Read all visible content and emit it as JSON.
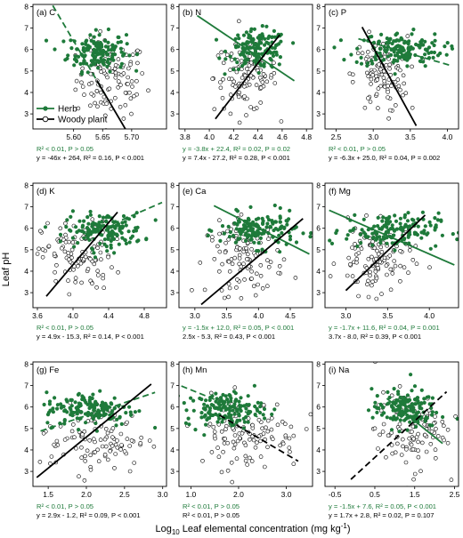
{
  "colors": {
    "herb": "#1e7a3a",
    "woody": "#000000"
  },
  "ylabel": "Leaf pH",
  "xlabel_parts": [
    "Log",
    "10",
    " Leaf elemental concentration (mg kg",
    "-1",
    ")"
  ],
  "legend": {
    "herb": "Herb",
    "woody": "Woody plant"
  },
  "chart_data": [
    {
      "type": "scatter",
      "label": "(a) C",
      "xlim": [
        5.53,
        5.76
      ],
      "ylim": [
        2.3,
        8.1
      ],
      "xticks": [
        5.6,
        5.65,
        5.7
      ],
      "xtick_labels": [
        "5.60",
        "5.65",
        "5.70"
      ],
      "yticks": [
        3,
        4,
        5,
        6,
        7,
        8
      ],
      "herb_center": [
        5.64,
        5.9
      ],
      "herb_spread": [
        0.025,
        0.45
      ],
      "woody_center": [
        5.665,
        4.6
      ],
      "woody_spread": [
        0.03,
        0.9
      ],
      "herb_line": {
        "slope": -46,
        "intercept": 264,
        "x": [
          5.53,
          5.66
        ],
        "dashed": true
      },
      "woody_line": {
        "slope": -46,
        "intercept": 264,
        "x": [
          5.64,
          5.75
        ],
        "dashed": false
      },
      "stat_herb": "R² < 0.01, P > 0.05",
      "stat_woody": "y = -46x + 264, R² = 0.16, P < 0.001"
    },
    {
      "type": "scatter",
      "label": "(b) N",
      "xlim": [
        3.75,
        4.85
      ],
      "ylim": [
        2.3,
        8.1
      ],
      "xticks": [
        3.8,
        4.0,
        4.2,
        4.4,
        4.6,
        4.8
      ],
      "xtick_labels": [
        "3.8",
        "4.0",
        "4.2",
        "4.4",
        "4.6",
        "4.8"
      ],
      "yticks": [
        3,
        4,
        5,
        6,
        7,
        8
      ],
      "herb_center": [
        4.4,
        6.0
      ],
      "herb_spread": [
        0.12,
        0.45
      ],
      "woody_center": [
        4.3,
        4.7
      ],
      "woody_spread": [
        0.13,
        0.8
      ],
      "herb_line": {
        "slope": -3.8,
        "intercept": 22.4,
        "x": [
          3.9,
          4.7
        ],
        "dashed": false
      },
      "woody_line": {
        "slope": 7.4,
        "intercept": -27.2,
        "x": [
          4.05,
          4.58
        ],
        "dashed": false
      },
      "stat_herb": "y = -3.8x + 22.4, R² = 0.02, P = 0.02",
      "stat_woody": "y = 7.4x - 27.2, R² = 0.28, P < 0.001"
    },
    {
      "type": "scatter",
      "label": "(c) P",
      "xlim": [
        2.35,
        4.15
      ],
      "ylim": [
        2.3,
        8.1
      ],
      "xticks": [
        2.5,
        3.0,
        3.5,
        4.0
      ],
      "xtick_labels": [
        "2.5",
        "3.0",
        "3.5",
        "4.0"
      ],
      "yticks": [
        3,
        4,
        5,
        6,
        7,
        8
      ],
      "herb_center": [
        3.35,
        6.0
      ],
      "herb_spread": [
        0.3,
        0.4
      ],
      "woody_center": [
        3.1,
        4.8
      ],
      "woody_spread": [
        0.18,
        0.9
      ],
      "herb_line": {
        "slope": -1.0,
        "intercept": 9.3,
        "x": [
          2.8,
          4.05
        ],
        "dashed": true
      },
      "woody_line": {
        "slope": -6.3,
        "intercept": 25.0,
        "x": [
          2.85,
          3.58
        ],
        "dashed": false
      },
      "stat_herb": "R² < 0.01, P > 0.05",
      "stat_woody": "y = -6.3x + 25.0, R² = 0.04, P = 0.002"
    },
    {
      "type": "scatter",
      "label": "(d) K",
      "xlim": [
        3.55,
        5.05
      ],
      "ylim": [
        2.3,
        8.1
      ],
      "xticks": [
        3.6,
        4.0,
        4.4,
        4.8
      ],
      "xtick_labels": [
        "3.6",
        "4.0",
        "4.4",
        "4.8"
      ],
      "yticks": [
        3,
        4,
        5,
        6,
        7,
        8
      ],
      "herb_center": [
        4.35,
        5.9
      ],
      "herb_spread": [
        0.22,
        0.4
      ],
      "woody_center": [
        4.05,
        4.7
      ],
      "woody_spread": [
        0.2,
        0.8
      ],
      "herb_line": {
        "slope": 1.8,
        "intercept": -1.8,
        "x": [
          4.45,
          5.0
        ],
        "dashed": true
      },
      "woody_line": {
        "slope": 4.9,
        "intercept": -15.3,
        "x": [
          3.7,
          4.5
        ],
        "dashed": false
      },
      "stat_herb": "R² < 0.01, P > 0.05",
      "stat_woody": "y = 4.9x - 15.3, R² = 0.14, P < 0.001"
    },
    {
      "type": "scatter",
      "label": "(e) Ca",
      "xlim": [
        2.75,
        4.85
      ],
      "ylim": [
        2.3,
        8.1
      ],
      "xticks": [
        3.0,
        3.5,
        4.0,
        4.5
      ],
      "xtick_labels": [
        "3.0",
        "3.5",
        "4.0",
        "4.5"
      ],
      "yticks": [
        3,
        4,
        5,
        6,
        7,
        8
      ],
      "herb_center": [
        4.0,
        5.9
      ],
      "herb_spread": [
        0.3,
        0.4
      ],
      "woody_center": [
        3.8,
        4.6
      ],
      "woody_spread": [
        0.3,
        0.85
      ],
      "herb_line": {
        "slope": -1.5,
        "intercept": 12.0,
        "x": [
          3.3,
          4.8
        ],
        "dashed": false
      },
      "woody_line": {
        "slope": 2.5,
        "intercept": -5.3,
        "x": [
          3.1,
          4.7
        ],
        "dashed": false
      },
      "stat_herb": "y = -1.5x + 12.0, R² = 0.05, P < 0.001",
      "stat_woody": "2.5x - 5.3, R² = 0.43, P < 0.001"
    },
    {
      "type": "scatter",
      "label": "(f) Mg",
      "xlim": [
        2.75,
        4.35
      ],
      "ylim": [
        2.3,
        8.1
      ],
      "xticks": [
        3.0,
        3.5,
        4.0
      ],
      "xtick_labels": [
        "3.0",
        "3.5",
        "4.0"
      ],
      "yticks": [
        3,
        4,
        5,
        6,
        7,
        8
      ],
      "herb_center": [
        3.55,
        5.9
      ],
      "herb_spread": [
        0.28,
        0.4
      ],
      "woody_center": [
        3.35,
        4.5
      ],
      "woody_spread": [
        0.22,
        0.8
      ],
      "herb_line": {
        "slope": -1.7,
        "intercept": 11.6,
        "x": [
          2.8,
          4.3
        ],
        "dashed": false
      },
      "woody_line": {
        "slope": 3.7,
        "intercept": -8.0,
        "x": [
          3.0,
          3.95
        ],
        "dashed": false
      },
      "stat_herb": "y = -1.7x + 11.6, R² = 0.04, P = 0.001",
      "stat_woody": "3.7x - 8.0, R² = 0.39, P < 0.001"
    },
    {
      "type": "scatter",
      "label": "(g) Fe",
      "xlim": [
        1.3,
        3.05
      ],
      "ylim": [
        2.3,
        8.1
      ],
      "xticks": [
        1.5,
        2.0,
        2.5,
        3.0
      ],
      "xtick_labels": [
        "1.5",
        "2.0",
        "2.5",
        "3.0"
      ],
      "yticks": [
        3,
        4,
        5,
        6,
        7,
        8
      ],
      "herb_center": [
        2.05,
        5.9
      ],
      "herb_spread": [
        0.3,
        0.4
      ],
      "woody_center": [
        2.1,
        4.5
      ],
      "woody_spread": [
        0.35,
        0.8
      ],
      "herb_line": {
        "slope": 1.2,
        "intercept": 3.2,
        "x": [
          1.4,
          2.9
        ],
        "dashed": true
      },
      "woody_line": {
        "slope": 2.9,
        "intercept": -1.2,
        "x": [
          1.35,
          2.85
        ],
        "dashed": false
      },
      "stat_herb": "R² < 0.01, P > 0.05",
      "stat_woody": "y = 2.9x - 1.2, R² = 0.09, P < 0.001"
    },
    {
      "type": "scatter",
      "label": "(h) Mn",
      "xlim": [
        0.75,
        3.55
      ],
      "ylim": [
        2.3,
        8.1
      ],
      "xticks": [
        1.0,
        2.0,
        3.0
      ],
      "xtick_labels": [
        "1.0",
        "2.0",
        "3.0"
      ],
      "yticks": [
        3,
        4,
        5,
        6,
        7,
        8
      ],
      "herb_center": [
        1.7,
        5.9
      ],
      "herb_spread": [
        0.4,
        0.4
      ],
      "woody_center": [
        2.2,
        4.8
      ],
      "woody_spread": [
        0.55,
        0.85
      ],
      "herb_line": {
        "slope": -0.9,
        "intercept": 7.7,
        "x": [
          0.8,
          2.4
        ],
        "dashed": true
      },
      "woody_line": {
        "slope": -1.3,
        "intercept": 7.7,
        "x": [
          1.6,
          3.25
        ],
        "dashed": true
      },
      "stat_herb": "R² < 0.01, P > 0.05",
      "stat_woody": "R² < 0.01, P > 0.05"
    },
    {
      "type": "scatter",
      "label": "(i) Na",
      "xlim": [
        -0.75,
        2.6
      ],
      "ylim": [
        2.3,
        8.1
      ],
      "xticks": [
        -0.5,
        0.5,
        1.5,
        2.5
      ],
      "xtick_labels": [
        "-0.5",
        "0.5",
        "1.5",
        "2.5"
      ],
      "yticks": [
        3,
        4,
        5,
        6,
        7,
        8
      ],
      "herb_center": [
        1.25,
        5.9
      ],
      "herb_spread": [
        0.4,
        0.45
      ],
      "woody_center": [
        1.4,
        4.9
      ],
      "woody_spread": [
        0.45,
        0.9
      ],
      "herb_line": {
        "slope": -1.5,
        "intercept": 7.6,
        "x": [
          0.8,
          2.2
        ],
        "dashed": false
      },
      "woody_line": {
        "slope": 1.7,
        "intercept": 2.8,
        "x": [
          -0.1,
          2.3
        ],
        "dashed": true
      },
      "stat_herb": "y = -1.5x + 7.6, R² = 0.05, P < 0.001",
      "stat_woody": "y = 1.7x + 2.8, R² = 0.02, P = 0.107"
    }
  ]
}
